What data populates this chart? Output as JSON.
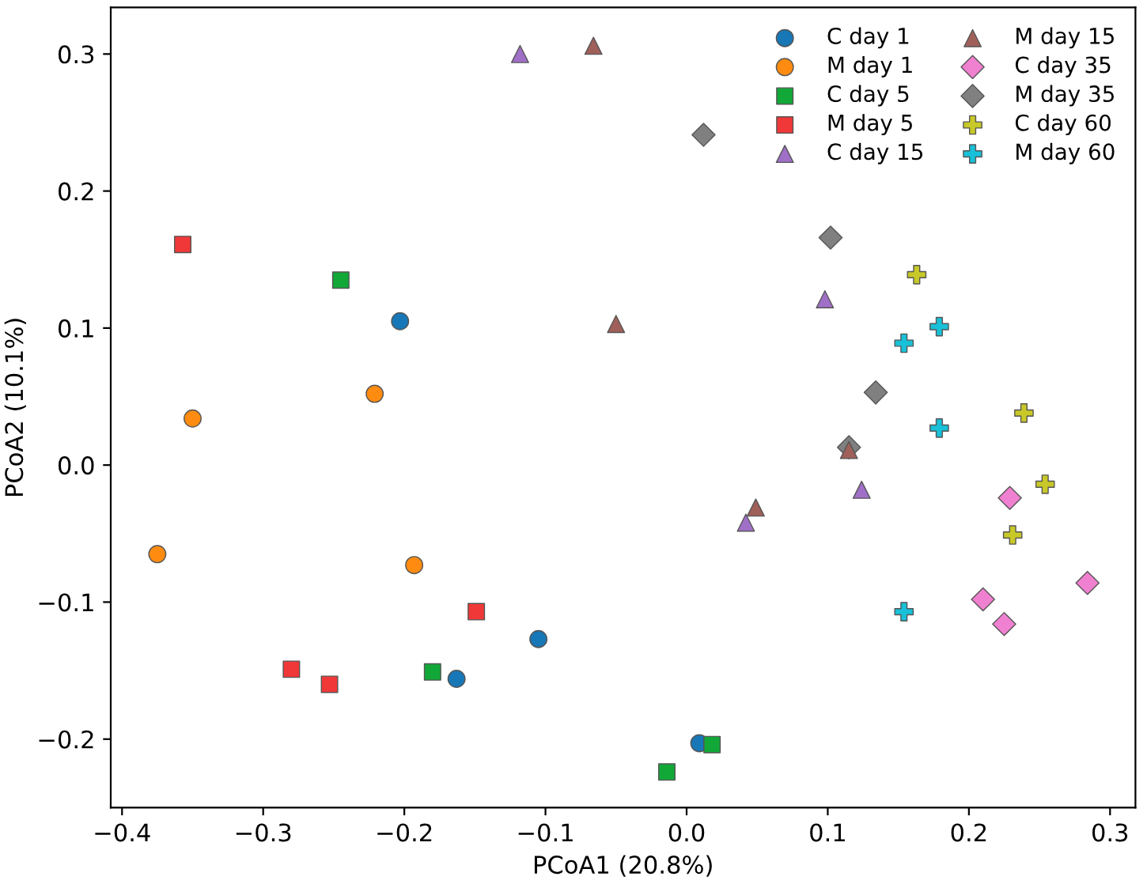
{
  "chart_data": {
    "type": "scatter",
    "xlabel": "PCoA1 (20.8%)",
    "ylabel": "PCoA2 (10.1%)",
    "xlim": [
      -0.408,
      0.318
    ],
    "ylim": [
      -0.25,
      0.334
    ],
    "xticks": [
      {
        "value": -0.4,
        "label": "−0.4"
      },
      {
        "value": -0.3,
        "label": "−0.3"
      },
      {
        "value": -0.2,
        "label": "−0.2"
      },
      {
        "value": -0.1,
        "label": "−0.1"
      },
      {
        "value": 0.0,
        "label": "0.0"
      },
      {
        "value": 0.1,
        "label": "0.1"
      },
      {
        "value": 0.2,
        "label": "0.2"
      },
      {
        "value": 0.3,
        "label": "0.3"
      }
    ],
    "yticks": [
      {
        "value": -0.2,
        "label": "−0.2"
      },
      {
        "value": -0.1,
        "label": "−0.1"
      },
      {
        "value": 0.0,
        "label": "0.0"
      },
      {
        "value": 0.1,
        "label": "0.1"
      },
      {
        "value": 0.2,
        "label": "0.2"
      },
      {
        "value": 0.3,
        "label": "0.3"
      }
    ],
    "grid": false,
    "legend": "top right",
    "series": [
      {
        "name": "C day 1",
        "color": "#1877b6",
        "marker": "circle",
        "x": [
          -0.203,
          -0.105,
          -0.163,
          0.009
        ],
        "values": [
          0.105,
          -0.127,
          -0.156,
          -0.203
        ]
      },
      {
        "name": "M day 1",
        "color": "#ff8c10",
        "marker": "circle",
        "x": [
          -0.221,
          -0.35,
          -0.375,
          -0.193
        ],
        "values": [
          0.052,
          0.034,
          -0.065,
          -0.073
        ]
      },
      {
        "name": "C day 5",
        "color": "#12a838",
        "marker": "square",
        "x": [
          -0.245,
          -0.18,
          -0.014,
          0.018
        ],
        "values": [
          0.135,
          -0.151,
          -0.224,
          -0.204
        ]
      },
      {
        "name": "M day 5",
        "color": "#f03838",
        "marker": "square",
        "x": [
          -0.357,
          -0.149,
          -0.28,
          -0.253
        ],
        "values": [
          0.161,
          -0.107,
          -0.149,
          -0.16
        ]
      },
      {
        "name": "C day 15",
        "color": "#a070c8",
        "marker": "triangle",
        "x": [
          -0.118,
          0.124,
          0.042,
          0.098
        ],
        "values": [
          0.3,
          -0.018,
          -0.042,
          0.121
        ]
      },
      {
        "name": "M day 15",
        "color": "#a0605a",
        "marker": "triangle",
        "x": [
          -0.066,
          -0.05,
          0.115,
          0.049
        ],
        "values": [
          0.306,
          0.103,
          0.011,
          -0.031
        ]
      },
      {
        "name": "C day 35",
        "color": "#f080d0",
        "marker": "diamond",
        "x": [
          0.229,
          0.284,
          0.21,
          0.225
        ],
        "values": [
          -0.024,
          -0.086,
          -0.098,
          -0.116
        ]
      },
      {
        "name": "M day 35",
        "color": "#808080",
        "marker": "diamond",
        "x": [
          0.012,
          0.102,
          0.134,
          0.115
        ],
        "values": [
          0.241,
          0.166,
          0.053,
          0.013
        ]
      },
      {
        "name": "C day 60",
        "color": "#c8c828",
        "marker": "cross",
        "x": [
          0.163,
          0.239,
          0.254,
          0.231
        ],
        "values": [
          0.139,
          0.038,
          -0.014,
          -0.051
        ]
      },
      {
        "name": "M day 60",
        "color": "#18c0d8",
        "marker": "cross",
        "x": [
          0.179,
          0.154,
          0.179,
          0.154
        ],
        "values": [
          0.101,
          0.089,
          0.027,
          -0.107
        ]
      }
    ]
  }
}
